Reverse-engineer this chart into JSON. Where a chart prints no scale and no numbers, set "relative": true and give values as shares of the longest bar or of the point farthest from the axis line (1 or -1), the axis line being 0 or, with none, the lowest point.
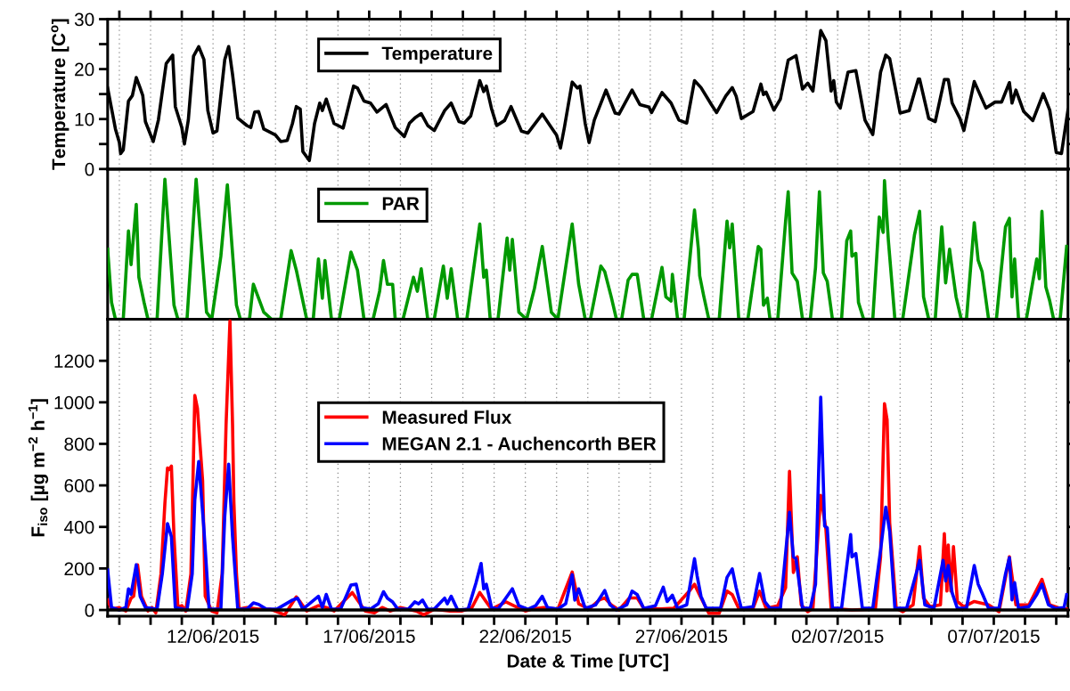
{
  "chart_data": [
    {
      "type": "line",
      "ylabel": "Temperature [C$^{o}$]",
      "xlim": [
        "2015-06-08T15:00",
        "2015-07-09T09:00"
      ],
      "ylim": [
        0,
        30
      ],
      "yticks": [
        0,
        {
          "value": 5,
          "label": null
        },
        10,
        {
          "value": 15,
          "label": null
        },
        20,
        {
          "value": 25,
          "label": null
        },
        30
      ],
      "xticks": [
        {
          "value": "2015-06-09",
          "label": null
        },
        {
          "value": "2015-06-10",
          "label": null
        },
        {
          "value": "2015-06-11",
          "label": null
        },
        {
          "value": "2015-06-12",
          "label": null
        },
        {
          "value": "2015-06-13",
          "label": null
        },
        {
          "value": "2015-06-14",
          "label": null
        },
        {
          "value": "2015-06-15",
          "label": null
        },
        {
          "value": "2015-06-16",
          "label": null
        },
        {
          "value": "2015-06-17",
          "label": null
        },
        {
          "value": "2015-06-18",
          "label": null
        },
        {
          "value": "2015-06-19",
          "label": null
        },
        {
          "value": "2015-06-20",
          "label": null
        },
        {
          "value": "2015-06-21",
          "label": null
        },
        {
          "value": "2015-06-22",
          "label": null
        },
        {
          "value": "2015-06-23",
          "label": null
        },
        {
          "value": "2015-06-24",
          "label": null
        },
        {
          "value": "2015-06-25",
          "label": null
        },
        {
          "value": "2015-06-26",
          "label": null
        },
        {
          "value": "2015-06-27",
          "label": null
        },
        {
          "value": "2015-06-28",
          "label": null
        },
        {
          "value": "2015-06-29",
          "label": null
        },
        {
          "value": "2015-06-30",
          "label": null
        },
        {
          "value": "2015-07-01",
          "label": null
        },
        {
          "value": "2015-07-02",
          "label": null
        },
        {
          "value": "2015-07-03",
          "label": null
        },
        {
          "value": "2015-07-04",
          "label": null
        },
        {
          "value": "2015-07-05",
          "label": null
        },
        {
          "value": "2015-07-06",
          "label": null
        },
        {
          "value": "2015-07-07",
          "label": null
        },
        {
          "value": "2015-07-08",
          "label": null
        },
        {
          "value": "2015-07-09",
          "label": null
        }
      ],
      "tick_labels": "y",
      "grid": "x",
      "legend": "top left",
      "marker": "none",
      "line_style": "solid",
      "series": [
        {
          "name": "Temperature",
          "color": "#000000",
          "x": [
            "2015-06-08T15:00",
            "2015-06-08T18:00",
            "2015-06-08T21:00",
            "2015-06-09T00:00",
            "2015-06-09T01:00",
            "2015-06-09T03:00",
            "2015-06-09T07:00",
            "2015-06-09T10:00",
            "2015-06-09T13:00",
            "2015-06-09T16:00",
            "2015-06-09T18:00",
            "2015-06-09T20:00",
            "2015-06-10T02:00",
            "2015-06-10T06:00",
            "2015-06-10T12:00",
            "2015-06-10T17:00",
            "2015-06-10T19:00",
            "2015-06-11T00:00",
            "2015-06-11T02:00",
            "2015-06-11T05:00",
            "2015-06-11T09:00",
            "2015-06-11T13:00",
            "2015-06-11T17:00",
            "2015-06-11T20:00",
            "2015-06-12T00:00",
            "2015-06-12T03:00",
            "2015-06-12T09:00",
            "2015-06-12T12:00",
            "2015-06-12T15:00",
            "2015-06-12T19:00",
            "2015-06-13T02:00",
            "2015-06-13T05:00",
            "2015-06-13T08:00",
            "2015-06-13T11:00",
            "2015-06-13T15:00",
            "2015-06-14T00:00",
            "2015-06-14T04:00",
            "2015-06-14T09:00",
            "2015-06-14T13:00",
            "2015-06-14T16:00",
            "2015-06-14T19:00",
            "2015-06-14T21:00",
            "2015-06-15T02:00",
            "2015-06-15T06:00",
            "2015-06-15T10:00",
            "2015-06-15T12:00",
            "2015-06-15T15:00",
            "2015-06-15T21:00",
            "2015-06-16T04:00",
            "2015-06-16T12:00",
            "2015-06-16T15:00",
            "2015-06-16T20:00",
            "2015-06-17T01:00",
            "2015-06-17T06:00",
            "2015-06-17T13:00",
            "2015-06-17T20:00",
            "2015-06-18T03:00",
            "2015-06-18T07:00",
            "2015-06-18T11:00",
            "2015-06-18T16:00",
            "2015-06-18T21:00",
            "2015-06-19T02:00",
            "2015-06-19T10:00",
            "2015-06-19T15:00",
            "2015-06-19T21:00",
            "2015-06-20T01:00",
            "2015-06-20T06:00",
            "2015-06-20T13:00",
            "2015-06-20T16:00",
            "2015-06-20T18:00",
            "2015-06-20T22:00",
            "2015-06-21T02:00",
            "2015-06-21T08:00",
            "2015-06-21T13:00",
            "2015-06-21T21:00",
            "2015-06-22T02:00",
            "2015-06-22T13:00",
            "2015-06-22T20:00",
            "2015-06-23T00:00",
            "2015-06-23T03:00",
            "2015-06-23T06:00",
            "2015-06-23T12:00",
            "2015-06-23T16:00",
            "2015-06-23T18:00",
            "2015-06-23T22:00",
            "2015-06-24T01:00",
            "2015-06-24T05:00",
            "2015-06-24T14:00",
            "2015-06-24T21:00",
            "2015-06-25T00:00",
            "2015-06-25T10:00",
            "2015-06-25T16:00",
            "2015-06-25T23:00",
            "2015-06-26T01:00",
            "2015-06-26T09:00",
            "2015-06-26T16:00",
            "2015-06-26T22:00",
            "2015-06-27T04:00",
            "2015-06-27T10:00",
            "2015-06-27T15:00",
            "2015-06-27T23:00",
            "2015-06-28T03:00",
            "2015-06-28T10:00",
            "2015-06-28T15:00",
            "2015-06-28T18:00",
            "2015-06-28T22:00",
            "2015-06-29T07:00",
            "2015-06-29T13:00",
            "2015-06-29T15:00",
            "2015-06-29T17:00",
            "2015-06-29T23:00",
            "2015-06-30T04:00",
            "2015-06-30T10:00",
            "2015-06-30T16:00",
            "2015-06-30T21:00",
            "2015-07-01T01:00",
            "2015-07-01T05:00",
            "2015-07-01T11:00",
            "2015-07-01T15:00",
            "2015-07-01T19:00",
            "2015-07-01T21:00",
            "2015-07-01T23:00",
            "2015-07-02T02:00",
            "2015-07-02T08:00",
            "2015-07-02T14:00",
            "2015-07-02T21:00",
            "2015-07-03T03:00",
            "2015-07-03T09:00",
            "2015-07-03T13:00",
            "2015-07-03T16:00",
            "2015-07-04T00:00",
            "2015-07-04T07:00",
            "2015-07-04T14:00",
            "2015-07-04T15:00",
            "2015-07-04T22:00",
            "2015-07-05T03:00",
            "2015-07-05T10:00",
            "2015-07-05T13:00",
            "2015-07-05T16:00",
            "2015-07-05T22:00",
            "2015-07-06T01:00",
            "2015-07-06T09:00",
            "2015-07-06T18:00",
            "2015-07-07T01:00",
            "2015-07-07T06:00",
            "2015-07-07T12:00",
            "2015-07-07T14:00",
            "2015-07-07T17:00",
            "2015-07-07T23:00",
            "2015-07-08T06:00",
            "2015-07-08T14:00",
            "2015-07-08T19:00",
            "2015-07-09T00:00",
            "2015-07-09T04:00",
            "2015-07-09T09:00"
          ],
          "values": [
            16.2,
            12.1,
            8,
            5.3,
            3.1,
            3.8,
            13.6,
            14.7,
            18.3,
            16.2,
            14.7,
            9.5,
            5.5,
            9.8,
            21.1,
            22.8,
            12.5,
            8.3,
            5,
            9.8,
            22.6,
            24.5,
            21.9,
            11.7,
            7.2,
            7.6,
            21.9,
            24.5,
            18.9,
            10.2,
            8.7,
            8.3,
            11.4,
            11.5,
            8,
            6.8,
            5.5,
            5.7,
            9.1,
            12.5,
            12,
            3.5,
            1.7,
            9.1,
            13.2,
            11.7,
            14,
            9.1,
            8.2,
            16.6,
            16.2,
            13.6,
            13.2,
            11.4,
            12.9,
            8.3,
            6.5,
            9.2,
            10.2,
            11.1,
            8.7,
            7.7,
            11.7,
            13.2,
            9.5,
            9.2,
            10.6,
            17.7,
            15.5,
            16.6,
            12.1,
            8.7,
            9.7,
            12.5,
            7.6,
            7.2,
            11,
            8.3,
            6.8,
            4.2,
            8.3,
            17.4,
            16.2,
            16.6,
            9.1,
            5.3,
            9.8,
            15.8,
            11.2,
            11,
            15.8,
            12.9,
            12.4,
            11.3,
            15.3,
            13.2,
            9.8,
            9.2,
            17.7,
            16.3,
            12.9,
            11.3,
            14.6,
            16.3,
            14.6,
            10.1,
            11.5,
            17,
            14.9,
            15.4,
            11.8,
            14,
            21.8,
            22.7,
            16,
            17.2,
            15.6,
            27.7,
            25.7,
            15.6,
            17.7,
            13.4,
            12.2,
            19.4,
            19.7,
            9.8,
            6.9,
            19.4,
            22.8,
            22.1,
            11.2,
            11.7,
            18,
            18,
            10.1,
            9.5,
            17.9,
            17.9,
            13.2,
            10.1,
            7.7,
            17.5,
            12.2,
            13.4,
            13.4,
            17.3,
            13.2,
            15.8,
            11.5,
            9.7,
            15.1,
            11.8,
            3.3,
            3.1,
            11.8
          ]
        }
      ]
    },
    {
      "type": "line",
      "relative": true,
      "xlim": [
        "2015-06-08T15:00",
        "2015-07-09T09:00"
      ],
      "xticks": [
        {
          "value": "2015-06-09",
          "label": null
        },
        {
          "value": "2015-06-10",
          "label": null
        },
        {
          "value": "2015-06-11",
          "label": null
        },
        {
          "value": "2015-06-12",
          "label": null
        },
        {
          "value": "2015-06-13",
          "label": null
        },
        {
          "value": "2015-06-14",
          "label": null
        },
        {
          "value": "2015-06-15",
          "label": null
        },
        {
          "value": "2015-06-16",
          "label": null
        },
        {
          "value": "2015-06-17",
          "label": null
        },
        {
          "value": "2015-06-18",
          "label": null
        },
        {
          "value": "2015-06-19",
          "label": null
        },
        {
          "value": "2015-06-20",
          "label": null
        },
        {
          "value": "2015-06-21",
          "label": null
        },
        {
          "value": "2015-06-22",
          "label": null
        },
        {
          "value": "2015-06-23",
          "label": null
        },
        {
          "value": "2015-06-24",
          "label": null
        },
        {
          "value": "2015-06-25",
          "label": null
        },
        {
          "value": "2015-06-26",
          "label": null
        },
        {
          "value": "2015-06-27",
          "label": null
        },
        {
          "value": "2015-06-28",
          "label": null
        },
        {
          "value": "2015-06-29",
          "label": null
        },
        {
          "value": "2015-06-30",
          "label": null
        },
        {
          "value": "2015-07-01",
          "label": null
        },
        {
          "value": "2015-07-02",
          "label": null
        },
        {
          "value": "2015-07-03",
          "label": null
        },
        {
          "value": "2015-07-04",
          "label": null
        },
        {
          "value": "2015-07-05",
          "label": null
        },
        {
          "value": "2015-07-06",
          "label": null
        },
        {
          "value": "2015-07-07",
          "label": null
        },
        {
          "value": "2015-07-08",
          "label": null
        },
        {
          "value": "2015-07-09",
          "label": null
        }
      ],
      "tick_labels": false,
      "grid": "x",
      "legend": "top left",
      "marker": "none",
      "line_style": "solid",
      "series": [
        {
          "name": "PAR",
          "color": "#009900",
          "x": [
            "2015-06-08T15:00",
            "2015-06-08T18:00",
            "2015-06-08T21:00",
            "2015-06-09T03:00",
            "2015-06-09T07:00",
            "2015-06-09T09:00",
            "2015-06-09T13:00",
            "2015-06-09T15:00",
            "2015-06-09T19:00",
            "2015-06-09T22:00",
            "2015-06-10T05:00",
            "2015-06-10T11:00",
            "2015-06-10T18:00",
            "2015-06-10T21:00",
            "2015-06-11T04:00",
            "2015-06-11T11:00",
            "2015-06-11T19:00",
            "2015-06-11T23:00",
            "2015-06-12T06:00",
            "2015-06-12T11:00",
            "2015-06-12T18:00",
            "2015-06-12T21:00",
            "2015-06-13T04:00",
            "2015-06-13T07:00",
            "2015-06-13T11:00",
            "2015-06-13T15:00",
            "2015-06-13T21:00",
            "2015-06-14T04:00",
            "2015-06-14T12:00",
            "2015-06-14T16:00",
            "2015-06-15T00:00",
            "2015-06-15T05:00",
            "2015-06-15T09:00",
            "2015-06-15T12:00",
            "2015-06-15T14:00",
            "2015-06-15T19:00",
            "2015-06-16T01:00",
            "2015-06-16T10:00",
            "2015-06-16T15:00",
            "2015-06-16T20:00",
            "2015-06-17T03:00",
            "2015-06-17T08:00",
            "2015-06-17T11:00",
            "2015-06-17T14:00",
            "2015-06-17T18:00",
            "2015-06-17T20:00",
            "2015-06-18T02:00",
            "2015-06-18T10:00",
            "2015-06-18T13:00",
            "2015-06-18T16:00",
            "2015-06-18T21:00",
            "2015-06-19T02:00",
            "2015-06-19T09:00",
            "2015-06-19T12:00",
            "2015-06-19T15:00",
            "2015-06-19T20:00",
            "2015-06-20T03:00",
            "2015-06-20T13:00",
            "2015-06-20T16:00",
            "2015-06-20T18:00",
            "2015-06-20T21:00",
            "2015-06-21T03:00",
            "2015-06-21T10:00",
            "2015-06-21T12:00",
            "2015-06-21T14:00",
            "2015-06-21T19:00",
            "2015-06-22T01:00",
            "2015-06-22T07:00",
            "2015-06-22T13:00",
            "2015-06-22T20:00",
            "2015-06-23T01:00",
            "2015-06-23T12:00",
            "2015-06-23T17:00",
            "2015-06-23T22:00",
            "2015-06-24T02:00",
            "2015-06-24T10:00",
            "2015-06-24T13:00",
            "2015-06-24T18:00",
            "2015-06-24T22:00",
            "2015-06-25T02:00",
            "2015-06-25T07:00",
            "2015-06-25T10:00",
            "2015-06-25T14:00",
            "2015-06-25T19:00",
            "2015-06-26T01:00",
            "2015-06-26T09:00",
            "2015-06-26T12:00",
            "2015-06-26T16:00",
            "2015-06-26T17:00",
            "2015-06-26T21:00",
            "2015-06-27T02:00",
            "2015-06-27T10:00",
            "2015-06-27T13:00",
            "2015-06-27T14:00",
            "2015-06-27T17:00",
            "2015-06-27T21:00",
            "2015-06-28T05:00",
            "2015-06-28T11:00",
            "2015-06-28T13:00",
            "2015-06-28T15:00",
            "2015-06-28T20:00",
            "2015-06-29T03:00",
            "2015-06-29T11:00",
            "2015-06-29T13:00",
            "2015-06-29T15:00",
            "2015-06-29T18:00",
            "2015-06-29T20:00",
            "2015-06-30T02:00",
            "2015-06-30T08:00",
            "2015-06-30T10:00",
            "2015-06-30T13:00",
            "2015-06-30T17:00",
            "2015-06-30T21:00",
            "2015-07-01T03:00",
            "2015-07-01T07:00",
            "2015-07-01T10:00",
            "2015-07-01T13:00",
            "2015-07-01T16:00",
            "2015-07-01T20:00",
            "2015-07-02T03:00",
            "2015-07-02T07:00",
            "2015-07-02T10:00",
            "2015-07-02T11:00",
            "2015-07-02T14:00",
            "2015-07-02T16:00",
            "2015-07-02T20:00",
            "2015-07-03T03:00",
            "2015-07-03T08:00",
            "2015-07-03T11:00",
            "2015-07-03T12:00",
            "2015-07-03T15:00",
            "2015-07-03T20:00",
            "2015-07-04T02:00",
            "2015-07-04T11:00",
            "2015-07-04T15:00",
            "2015-07-04T18:00",
            "2015-07-04T22:00",
            "2015-07-05T03:00",
            "2015-07-05T08:00",
            "2015-07-05T11:00",
            "2015-07-05T14:00",
            "2015-07-05T16:00",
            "2015-07-05T19:00",
            "2015-07-05T23:00",
            "2015-07-06T03:00",
            "2015-07-06T09:00",
            "2015-07-06T12:00",
            "2015-07-06T15:00",
            "2015-07-06T20:00",
            "2015-07-07T02:00",
            "2015-07-07T09:00",
            "2015-07-07T12:00",
            "2015-07-07T14:00",
            "2015-07-07T16:00",
            "2015-07-07T19:00",
            "2015-07-08T01:00",
            "2015-07-08T09:00",
            "2015-07-08T11:00",
            "2015-07-08T13:00",
            "2015-07-08T16:00",
            "2015-07-08T19:00",
            "2015-07-08T22:00",
            "2015-07-09T03:00",
            "2015-07-09T08:00"
          ],
          "values": [
            0.5,
            0.12,
            0,
            0,
            0.63,
            0.39,
            0.82,
            0.3,
            0.12,
            0,
            0,
            1.0,
            0.1,
            0,
            0,
            1.0,
            0.05,
            0,
            0.45,
            0.96,
            0.1,
            0,
            0,
            0.25,
            0.15,
            0.05,
            0,
            0,
            0.49,
            0.35,
            0,
            0,
            0.43,
            0.15,
            0.42,
            0,
            0,
            0.48,
            0.35,
            0,
            0,
            0.2,
            0.42,
            0.25,
            0.25,
            0,
            0,
            0.3,
            0.2,
            0.36,
            0,
            0,
            0.38,
            0.15,
            0.36,
            0,
            0,
            0.68,
            0.3,
            0.35,
            0,
            0,
            0.58,
            0.35,
            0.57,
            0.05,
            0,
            0.22,
            0.52,
            0.05,
            0,
            0.68,
            0.25,
            0,
            0,
            0.38,
            0.34,
            0.16,
            0,
            0,
            0.28,
            0.32,
            0.32,
            0,
            0,
            0.37,
            0.16,
            0.13,
            0.32,
            0,
            0,
            0.78,
            0.5,
            0.31,
            0.17,
            0,
            0,
            0.7,
            0.51,
            0.68,
            0,
            0,
            0.52,
            0.5,
            0.1,
            0.15,
            0,
            0,
            0.7,
            0.91,
            0.33,
            0.27,
            0,
            0,
            0.37,
            0.91,
            0.33,
            0.27,
            0,
            0,
            0.56,
            0.63,
            0.45,
            0.47,
            0.12,
            0,
            0,
            0.73,
            0.62,
            0.99,
            0.56,
            0,
            0,
            0.6,
            0.77,
            0.16,
            0,
            0,
            0.66,
            0.26,
            0.5,
            0.36,
            0.16,
            0,
            0,
            0.69,
            0.42,
            0.34,
            0,
            0,
            0.66,
            0.72,
            0.16,
            0.43,
            0,
            0,
            0.43,
            0.29,
            0.77,
            0.23,
            0.13,
            0,
            0,
            0.52
          ]
        }
      ]
    },
    {
      "type": "line",
      "ylabel": "F$_{iso}$ [µg m$^{−2}$ h$^{−1}$]",
      "xlabel": "Date & Time [UTC]",
      "xlim": [
        "2015-06-08T15:00",
        "2015-07-09T09:00"
      ],
      "ylim": [
        -30,
        1400
      ],
      "yticks": [
        0,
        200,
        400,
        600,
        800,
        1000,
        1200
      ],
      "xticks": [
        {
          "value": "2015-06-09",
          "label": null
        },
        {
          "value": "2015-06-10",
          "label": null
        },
        {
          "value": "2015-06-11",
          "label": null
        },
        {
          "value": "2015-06-12",
          "label": "12/06/2015"
        },
        {
          "value": "2015-06-13",
          "label": null
        },
        {
          "value": "2015-06-14",
          "label": null
        },
        {
          "value": "2015-06-15",
          "label": null
        },
        {
          "value": "2015-06-16",
          "label": null
        },
        {
          "value": "2015-06-17",
          "label": "17/06/2015"
        },
        {
          "value": "2015-06-18",
          "label": null
        },
        {
          "value": "2015-06-19",
          "label": null
        },
        {
          "value": "2015-06-20",
          "label": null
        },
        {
          "value": "2015-06-21",
          "label": null
        },
        {
          "value": "2015-06-22",
          "label": "22/06/2015"
        },
        {
          "value": "2015-06-23",
          "label": null
        },
        {
          "value": "2015-06-24",
          "label": null
        },
        {
          "value": "2015-06-25",
          "label": null
        },
        {
          "value": "2015-06-26",
          "label": null
        },
        {
          "value": "2015-06-27",
          "label": "27/06/2015"
        },
        {
          "value": "2015-06-28",
          "label": null
        },
        {
          "value": "2015-06-29",
          "label": null
        },
        {
          "value": "2015-06-30",
          "label": null
        },
        {
          "value": "2015-07-01",
          "label": null
        },
        {
          "value": "2015-07-02",
          "label": "02/07/2015"
        },
        {
          "value": "2015-07-03",
          "label": null
        },
        {
          "value": "2015-07-04",
          "label": null
        },
        {
          "value": "2015-07-05",
          "label": null
        },
        {
          "value": "2015-07-06",
          "label": null
        },
        {
          "value": "2015-07-07",
          "label": "07/07/2015"
        },
        {
          "value": "2015-07-08",
          "label": null
        },
        {
          "value": "2015-07-09",
          "label": null
        }
      ],
      "grid": "x",
      "legend": "center left",
      "marker": "none",
      "line_style": "solid",
      "ref_lines": [
        {
          "axis": "y",
          "value": 0,
          "label": null,
          "color": "#000000"
        }
      ],
      "series": [
        {
          "name": "Measured Flux",
          "color": "#ff0000",
          "x": [
            "2015-06-08T15:00",
            "2015-06-08T18:00",
            "2015-06-09T00:00",
            "2015-06-09T05:00",
            "2015-06-09T09:00",
            "2015-06-09T11:00",
            "2015-06-09T14:00",
            "2015-06-09T17:00",
            "2015-06-09T22:00",
            "2015-06-10T01:00",
            "2015-06-10T04:00",
            "2015-06-10T08:00",
            "2015-06-10T11:00",
            "2015-06-10T13:00",
            "2015-06-10T14:00",
            "2015-06-10T16:00",
            "2015-06-10T18:00",
            "2015-06-10T21:00",
            "2015-06-11T00:00",
            "2015-06-11T03:00",
            "2015-06-11T07:00",
            "2015-06-11T10:00",
            "2015-06-11T12:00",
            "2015-06-11T16:00",
            "2015-06-11T18:00",
            "2015-06-11T23:00",
            "2015-06-12T03:00",
            "2015-06-12T07:00",
            "2015-06-12T10:00",
            "2015-06-12T13:00",
            "2015-06-12T15:00",
            "2015-06-12T16:00",
            "2015-06-12T18:00",
            "2015-06-12T20:00",
            "2015-06-13T02:00",
            "2015-06-13T11:00",
            "2015-06-13T20:00",
            "2015-06-14T07:00",
            "2015-06-14T16:00",
            "2015-06-14T19:00",
            "2015-06-15T00:00",
            "2015-06-15T09:00",
            "2015-06-15T15:00",
            "2015-06-15T21:00",
            "2015-06-16T11:00",
            "2015-06-16T17:00",
            "2015-06-16T21:00",
            "2015-06-17T04:00",
            "2015-06-17T10:00",
            "2015-06-17T16:00",
            "2015-06-18T00:00",
            "2015-06-18T12:00",
            "2015-06-18T18:00",
            "2015-06-19T02:00",
            "2015-06-19T14:00",
            "2015-06-19T23:00",
            "2015-06-20T07:00",
            "2015-06-20T13:00",
            "2015-06-20T17:00",
            "2015-06-20T22:00",
            "2015-06-21T09:00",
            "2015-06-21T15:00",
            "2015-06-22T00:00",
            "2015-06-22T05:00",
            "2015-06-22T14:00",
            "2015-06-23T01:00",
            "2015-06-23T12:00",
            "2015-06-23T17:00",
            "2015-06-24T01:00",
            "2015-06-24T09:00",
            "2015-06-24T13:00",
            "2015-06-24T18:00",
            "2015-06-25T00:00",
            "2015-06-25T08:00",
            "2015-06-25T14:00",
            "2015-06-25T19:00",
            "2015-06-26T08:00",
            "2015-06-26T18:00",
            "2015-06-27T06:00",
            "2015-06-27T10:00",
            "2015-06-27T15:00",
            "2015-06-27T21:00",
            "2015-06-28T05:00",
            "2015-06-28T11:00",
            "2015-06-28T15:00",
            "2015-06-28T20:00",
            "2015-06-29T07:00",
            "2015-06-29T12:00",
            "2015-06-29T17:00",
            "2015-06-30T02:00",
            "2015-06-30T08:00",
            "2015-06-30T11:00",
            "2015-06-30T14:00",
            "2015-06-30T17:00",
            "2015-06-30T20:00",
            "2015-07-01T01:00",
            "2015-07-01T05:00",
            "2015-07-01T11:00",
            "2015-07-01T15:00",
            "2015-07-01T19:00",
            "2015-07-02T11:00",
            "2015-07-03T05:00",
            "2015-07-03T09:00",
            "2015-07-03T12:00",
            "2015-07-03T14:00",
            "2015-07-03T16:00",
            "2015-07-03T21:00",
            "2015-07-04T02:00",
            "2015-07-04T10:00",
            "2015-07-04T15:00",
            "2015-07-04T18:00",
            "2015-07-04T23:00",
            "2015-07-05T07:00",
            "2015-07-05T10:00",
            "2015-07-05T12:00",
            "2015-07-05T13:00",
            "2015-07-05T15:00",
            "2015-07-05T17:00",
            "2015-07-05T20:00",
            "2015-07-06T01:00",
            "2015-07-06T09:00",
            "2015-07-06T20:00",
            "2015-07-07T04:00",
            "2015-07-07T12:00",
            "2015-07-07T17:00",
            "2015-07-08T03:00",
            "2015-07-08T13:00",
            "2015-07-08T19:00",
            "2015-07-09T03:00",
            "2015-07-09T08:00"
          ],
          "values": [
            48,
            4,
            12,
            -5,
            57,
            66,
            218,
            66,
            -5,
            12,
            -14,
            174,
            514,
            684,
            675,
            693,
            353,
            12,
            21,
            -5,
            174,
            1033,
            971,
            621,
            66,
            -5,
            -14,
            174,
            890,
            1392,
            890,
            523,
            174,
            4,
            12,
            4,
            4,
            -23,
            63,
            39,
            -5,
            21,
            12,
            -5,
            84,
            30,
            -5,
            -14,
            12,
            -5,
            12,
            -5,
            -23,
            4,
            -5,
            -5,
            12,
            84,
            48,
            4,
            39,
            21,
            -5,
            4,
            12,
            4,
            183,
            30,
            5,
            49,
            58,
            25,
            0,
            58,
            58,
            8,
            5,
            8,
            91,
            124,
            58,
            -16,
            -16,
            91,
            74,
            8,
            8,
            91,
            8,
            21,
            107,
            668,
            181,
            256,
            25,
            -8,
            8,
            552,
            387,
            8,
            0,
            5,
            256,
            994,
            915,
            420,
            8,
            -8,
            25,
            305,
            58,
            16,
            25,
            368,
            91,
            313,
            91,
            305,
            41,
            16,
            41,
            25,
            -8,
            256,
            25,
            25,
            148,
            25,
            8,
            5
          ]
        },
        {
          "name": "MEGAN 2.1 - Auchencorth BER",
          "color": "#0000ff",
          "x": [
            "2015-06-08T15:00",
            "2015-06-08T18:00",
            "2015-06-09T00:00",
            "2015-06-09T05:00",
            "2015-06-09T07:00",
            "2015-06-09T09:00",
            "2015-06-09T13:00",
            "2015-06-09T16:00",
            "2015-06-09T20:00",
            "2015-06-10T05:00",
            "2015-06-10T09:00",
            "2015-06-10T13:00",
            "2015-06-10T16:00",
            "2015-06-10T19:00",
            "2015-06-11T04:00",
            "2015-06-11T08:00",
            "2015-06-11T10:00",
            "2015-06-11T13:00",
            "2015-06-11T17:00",
            "2015-06-11T21:00",
            "2015-06-12T06:00",
            "2015-06-12T09:00",
            "2015-06-12T12:00",
            "2015-06-12T15:00",
            "2015-06-12T19:00",
            "2015-06-13T02:00",
            "2015-06-13T07:00",
            "2015-06-13T11:00",
            "2015-06-13T17:00",
            "2015-06-14T01:00",
            "2015-06-14T13:00",
            "2015-06-14T17:00",
            "2015-06-14T21:00",
            "2015-06-15T09:00",
            "2015-06-15T12:00",
            "2015-06-15T15:00",
            "2015-06-15T19:00",
            "2015-06-16T02:00",
            "2015-06-16T10:00",
            "2015-06-16T14:00",
            "2015-06-16T18:00",
            "2015-06-17T01:00",
            "2015-06-17T07:00",
            "2015-06-17T11:00",
            "2015-06-17T14:00",
            "2015-06-17T18:00",
            "2015-06-17T22:00",
            "2015-06-18T06:00",
            "2015-06-18T11:00",
            "2015-06-18T14:00",
            "2015-06-18T17:00",
            "2015-06-18T21:00",
            "2015-06-19T02:00",
            "2015-06-19T10:00",
            "2015-06-19T12:00",
            "2015-06-19T15:00",
            "2015-06-19T20:00",
            "2015-06-20T04:00",
            "2015-06-20T10:00",
            "2015-06-20T14:00",
            "2015-06-20T16:00",
            "2015-06-20T18:00",
            "2015-06-20T22:00",
            "2015-06-21T03:00",
            "2015-06-21T11:00",
            "2015-06-21T14:00",
            "2015-06-21T19:00",
            "2015-06-22T02:00",
            "2015-06-22T08:00",
            "2015-06-22T13:00",
            "2015-06-22T17:00",
            "2015-06-23T01:00",
            "2015-06-23T07:00",
            "2015-06-23T12:00",
            "2015-06-23T14:00",
            "2015-06-23T17:00",
            "2015-06-23T22:00",
            "2015-06-24T06:00",
            "2015-06-24T13:00",
            "2015-06-24T17:00",
            "2015-06-24T22:00",
            "2015-06-25T06:00",
            "2015-06-25T10:00",
            "2015-06-25T14:00",
            "2015-06-25T19:00",
            "2015-06-26T04:00",
            "2015-06-26T10:00",
            "2015-06-26T13:00",
            "2015-06-26T17:00",
            "2015-06-26T21:00",
            "2015-06-27T04:00",
            "2015-06-27T10:00",
            "2015-06-27T12:00",
            "2015-06-27T15:00",
            "2015-06-27T19:00",
            "2015-06-28T06:00",
            "2015-06-28T11:00",
            "2015-06-28T15:00",
            "2015-06-28T18:00",
            "2015-06-28T22:00",
            "2015-06-29T07:00",
            "2015-06-29T12:00",
            "2015-06-29T16:00",
            "2015-06-29T20:00",
            "2015-06-30T04:00",
            "2015-06-30T11:00",
            "2015-06-30T14:00",
            "2015-06-30T16:00",
            "2015-06-30T21:00",
            "2015-07-01T03:00",
            "2015-07-01T07:00",
            "2015-07-01T11:00",
            "2015-07-01T14:00",
            "2015-07-01T16:00",
            "2015-07-01T20:00",
            "2015-07-02T03:00",
            "2015-07-02T10:00",
            "2015-07-02T11:00",
            "2015-07-02T14:00",
            "2015-07-02T19:00",
            "2015-07-03T03:00",
            "2015-07-03T09:00",
            "2015-07-03T13:00",
            "2015-07-03T16:00",
            "2015-07-03T20:00",
            "2015-07-04T05:00",
            "2015-07-04T13:00",
            "2015-07-04T15:00",
            "2015-07-04T19:00",
            "2015-07-05T02:00",
            "2015-07-05T09:00",
            "2015-07-05T11:00",
            "2015-07-05T13:00",
            "2015-07-05T16:00",
            "2015-07-05T20:00",
            "2015-07-06T03:00",
            "2015-07-06T09:00",
            "2015-07-06T12:00",
            "2015-07-06T15:00",
            "2015-07-06T20:00",
            "2015-07-07T04:00",
            "2015-07-07T09:00",
            "2015-07-07T12:00",
            "2015-07-07T14:00",
            "2015-07-07T16:00",
            "2015-07-07T19:00",
            "2015-07-08T03:00",
            "2015-07-08T09:00",
            "2015-07-08T13:00",
            "2015-07-08T18:00",
            "2015-07-08T23:00",
            "2015-07-09T06:00",
            "2015-07-09T08:00"
          ],
          "values": [
            192,
            12,
            0,
            12,
            102,
            75,
            218,
            66,
            12,
            4,
            174,
            416,
            353,
            12,
            0,
            174,
            532,
            715,
            389,
            4,
            4,
            451,
            702,
            353,
            4,
            4,
            34,
            27,
            4,
            4,
            48,
            57,
            4,
            66,
            12,
            75,
            4,
            4,
            120,
            124,
            12,
            4,
            30,
            88,
            57,
            39,
            4,
            4,
            39,
            30,
            48,
            4,
            4,
            57,
            30,
            66,
            0,
            4,
            129,
            224,
            102,
            124,
            12,
            4,
            75,
            102,
            21,
            4,
            21,
            66,
            12,
            4,
            30,
            170,
            48,
            102,
            8,
            25,
            94,
            25,
            0,
            25,
            91,
            74,
            8,
            21,
            110,
            41,
            71,
            8,
            25,
            247,
            165,
            66,
            8,
            8,
            157,
            198,
            107,
            8,
            16,
            176,
            41,
            8,
            8,
            470,
            256,
            247,
            8,
            8,
            124,
            1025,
            404,
            396,
            8,
            8,
            363,
            256,
            272,
            8,
            8,
            288,
            495,
            379,
            8,
            8,
            190,
            239,
            25,
            8,
            239,
            140,
            214,
            82,
            8,
            8,
            214,
            124,
            82,
            8,
            8,
            173,
            252,
            49,
            132,
            8,
            16,
            74,
            124,
            25,
            8,
            12,
            74
          ]
        }
      ]
    }
  ]
}
